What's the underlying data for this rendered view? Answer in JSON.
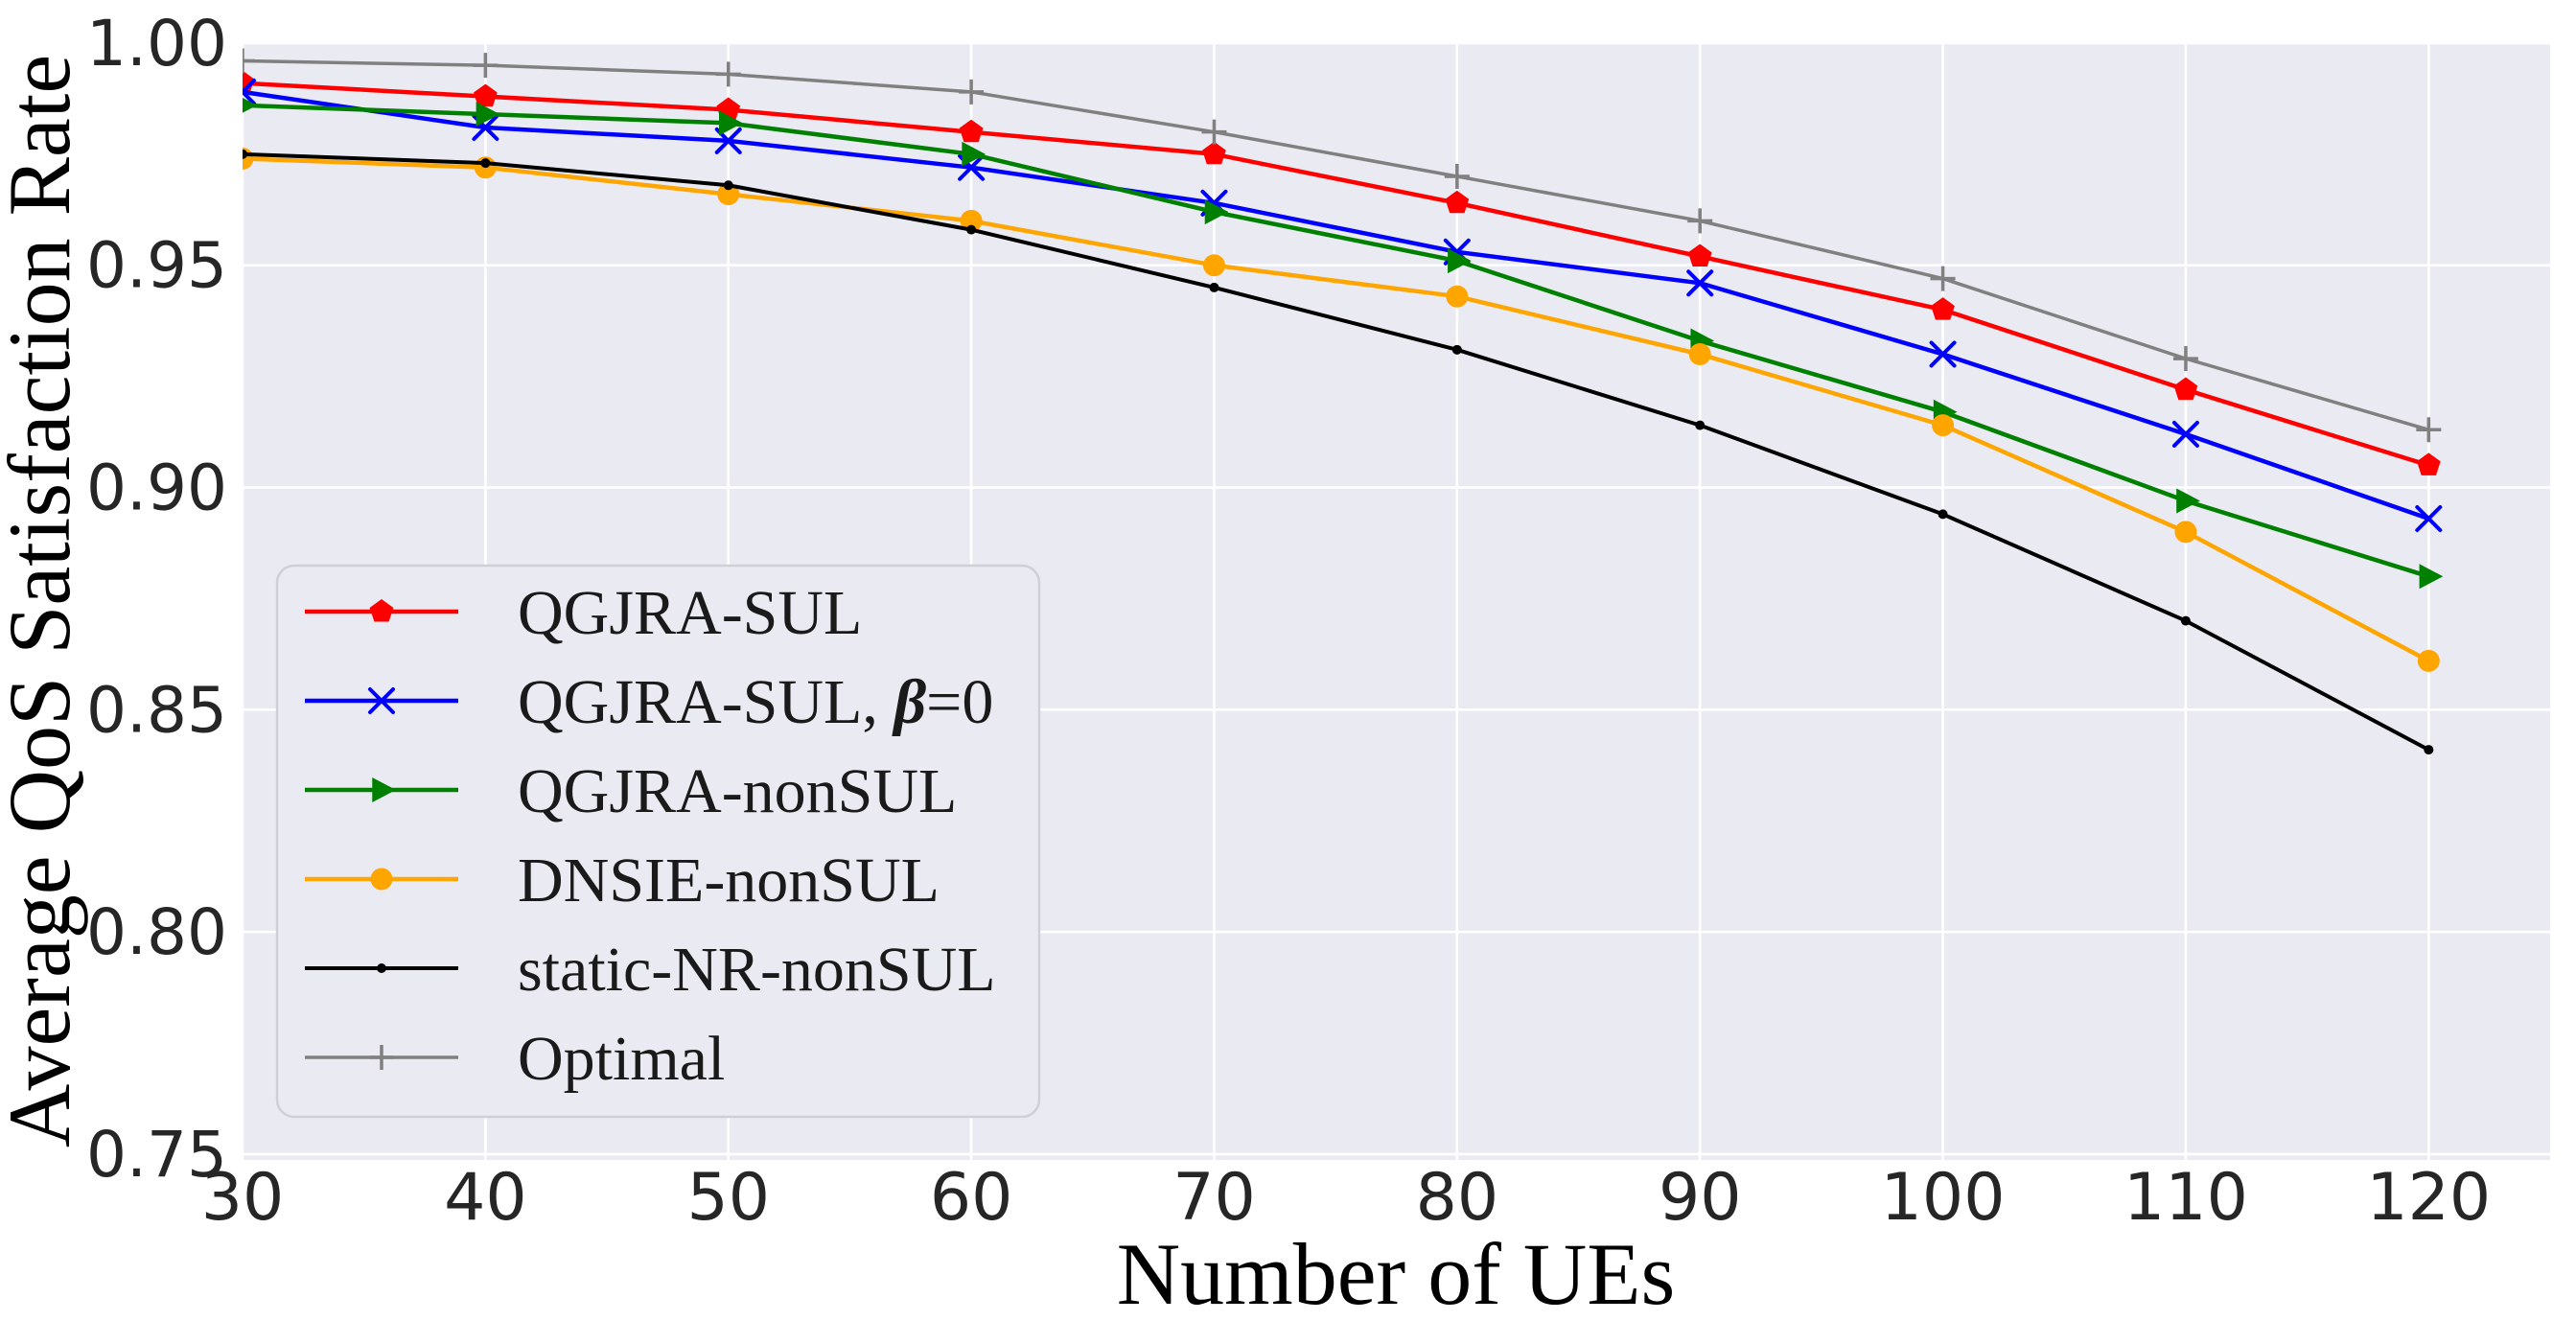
{
  "figure": {
    "background": "#ffffff",
    "plot_background": "#eaeaf2",
    "gridline_color": "#ffffff",
    "legend_border_color": "#cfcfd8",
    "legend_background": "#eaeaf2"
  },
  "chart_data": {
    "type": "line",
    "title": "",
    "xlabel": "Number of UEs",
    "ylabel": "Average QoS Satisfaction Rate",
    "x": [
      30,
      40,
      50,
      60,
      70,
      80,
      90,
      100,
      110,
      120
    ],
    "xtick_labels": [
      "30",
      "40",
      "50",
      "60",
      "70",
      "80",
      "90",
      "100",
      "110",
      "120"
    ],
    "ytick_values": [
      0.75,
      0.8,
      0.85,
      0.9,
      0.95,
      1.0
    ],
    "ytick_labels": [
      "0.75",
      "0.80",
      "0.85",
      "0.90",
      "0.95",
      "1.00"
    ],
    "xlim": [
      30,
      125
    ],
    "ylim": [
      0.7487,
      1.0002
    ],
    "grid": true,
    "legend_position": "lower-left",
    "series": [
      {
        "name": "QGJRA-SUL",
        "color": "#ff0000",
        "marker": "pentagon",
        "values": [
          0.991,
          0.988,
          0.985,
          0.98,
          0.975,
          0.964,
          0.952,
          0.94,
          0.922,
          0.905
        ]
      },
      {
        "name": "QGJRA-SUL, β=0",
        "color": "#0000ff",
        "marker": "x",
        "values": [
          0.989,
          0.981,
          0.978,
          0.972,
          0.964,
          0.953,
          0.946,
          0.93,
          0.912,
          0.893
        ]
      },
      {
        "name": "QGJRA-nonSUL",
        "color": "#008000",
        "marker": "triangle-right",
        "values": [
          0.986,
          0.984,
          0.982,
          0.975,
          0.962,
          0.951,
          0.933,
          0.917,
          0.897,
          0.88
        ]
      },
      {
        "name": "DNSIE-nonSUL",
        "color": "#ffa500",
        "marker": "circle",
        "values": [
          0.974,
          0.972,
          0.966,
          0.96,
          0.95,
          0.943,
          0.93,
          0.914,
          0.89,
          0.861
        ]
      },
      {
        "name": "static-NR-nonSUL",
        "color": "#000000",
        "marker": "point",
        "values": [
          0.975,
          0.973,
          0.968,
          0.958,
          0.945,
          0.931,
          0.914,
          0.894,
          0.87,
          0.841
        ]
      },
      {
        "name": "Optimal",
        "color": "#808080",
        "marker": "plus",
        "values": [
          0.996,
          0.995,
          0.993,
          0.989,
          0.98,
          0.97,
          0.96,
          0.947,
          0.929,
          0.913
        ]
      }
    ]
  }
}
